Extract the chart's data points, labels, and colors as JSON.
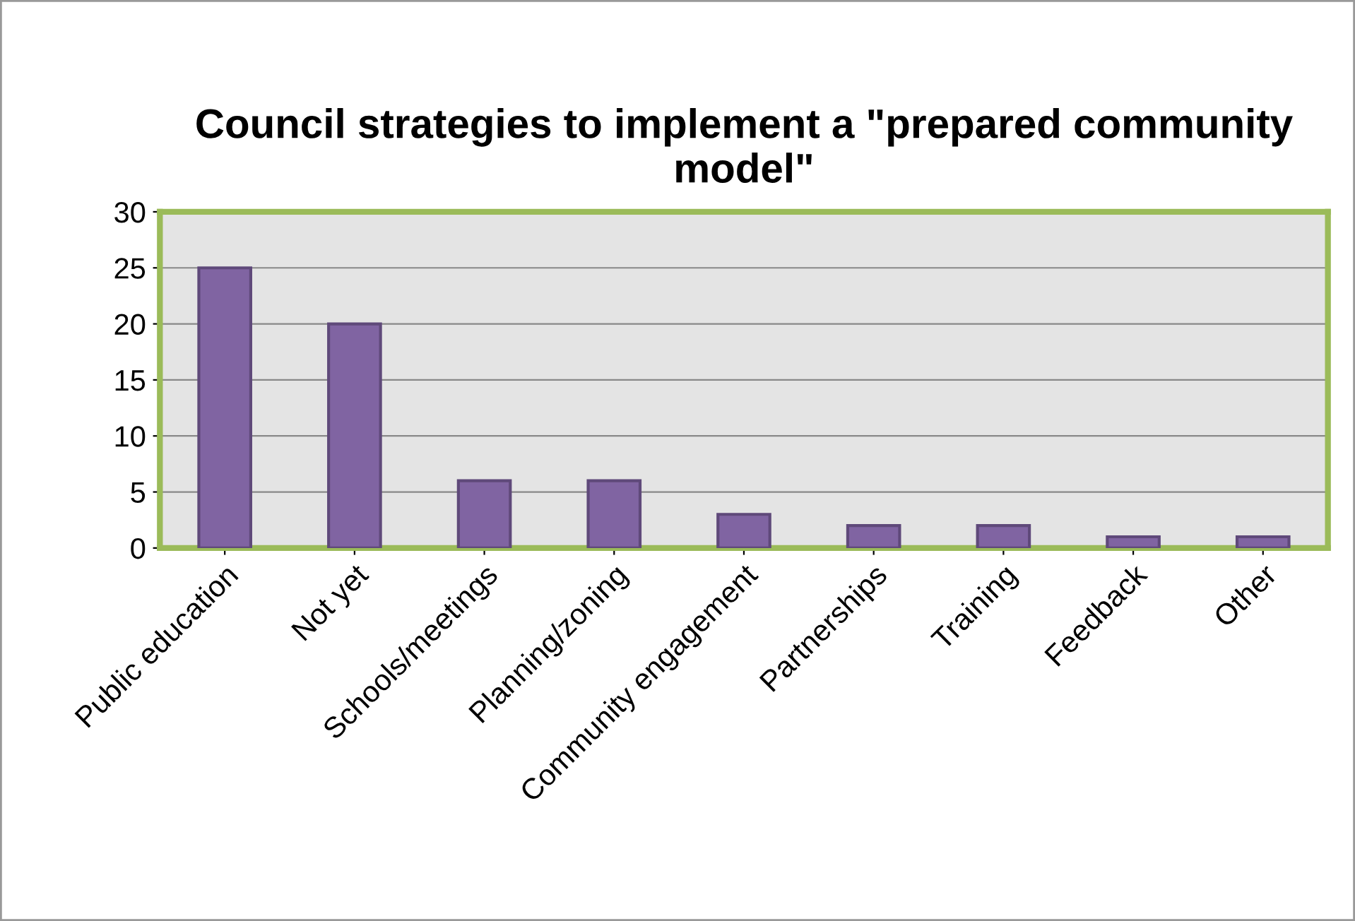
{
  "chart_data": {
    "type": "bar",
    "title": "Council strategies to implement a \"prepared community model\"",
    "categories": [
      "Public education",
      "Not yet",
      "Schools/meetings",
      "Planning/zoning",
      "Community engagement",
      "Partnerships",
      "Training",
      "Feedback",
      "Other"
    ],
    "values": [
      25,
      20,
      6,
      6,
      3,
      2,
      2,
      1,
      1
    ],
    "color": "#8064a2",
    "ylim": [
      0,
      30
    ],
    "yticks": [
      0,
      5,
      10,
      15,
      20,
      25,
      30
    ],
    "grid": "y"
  }
}
